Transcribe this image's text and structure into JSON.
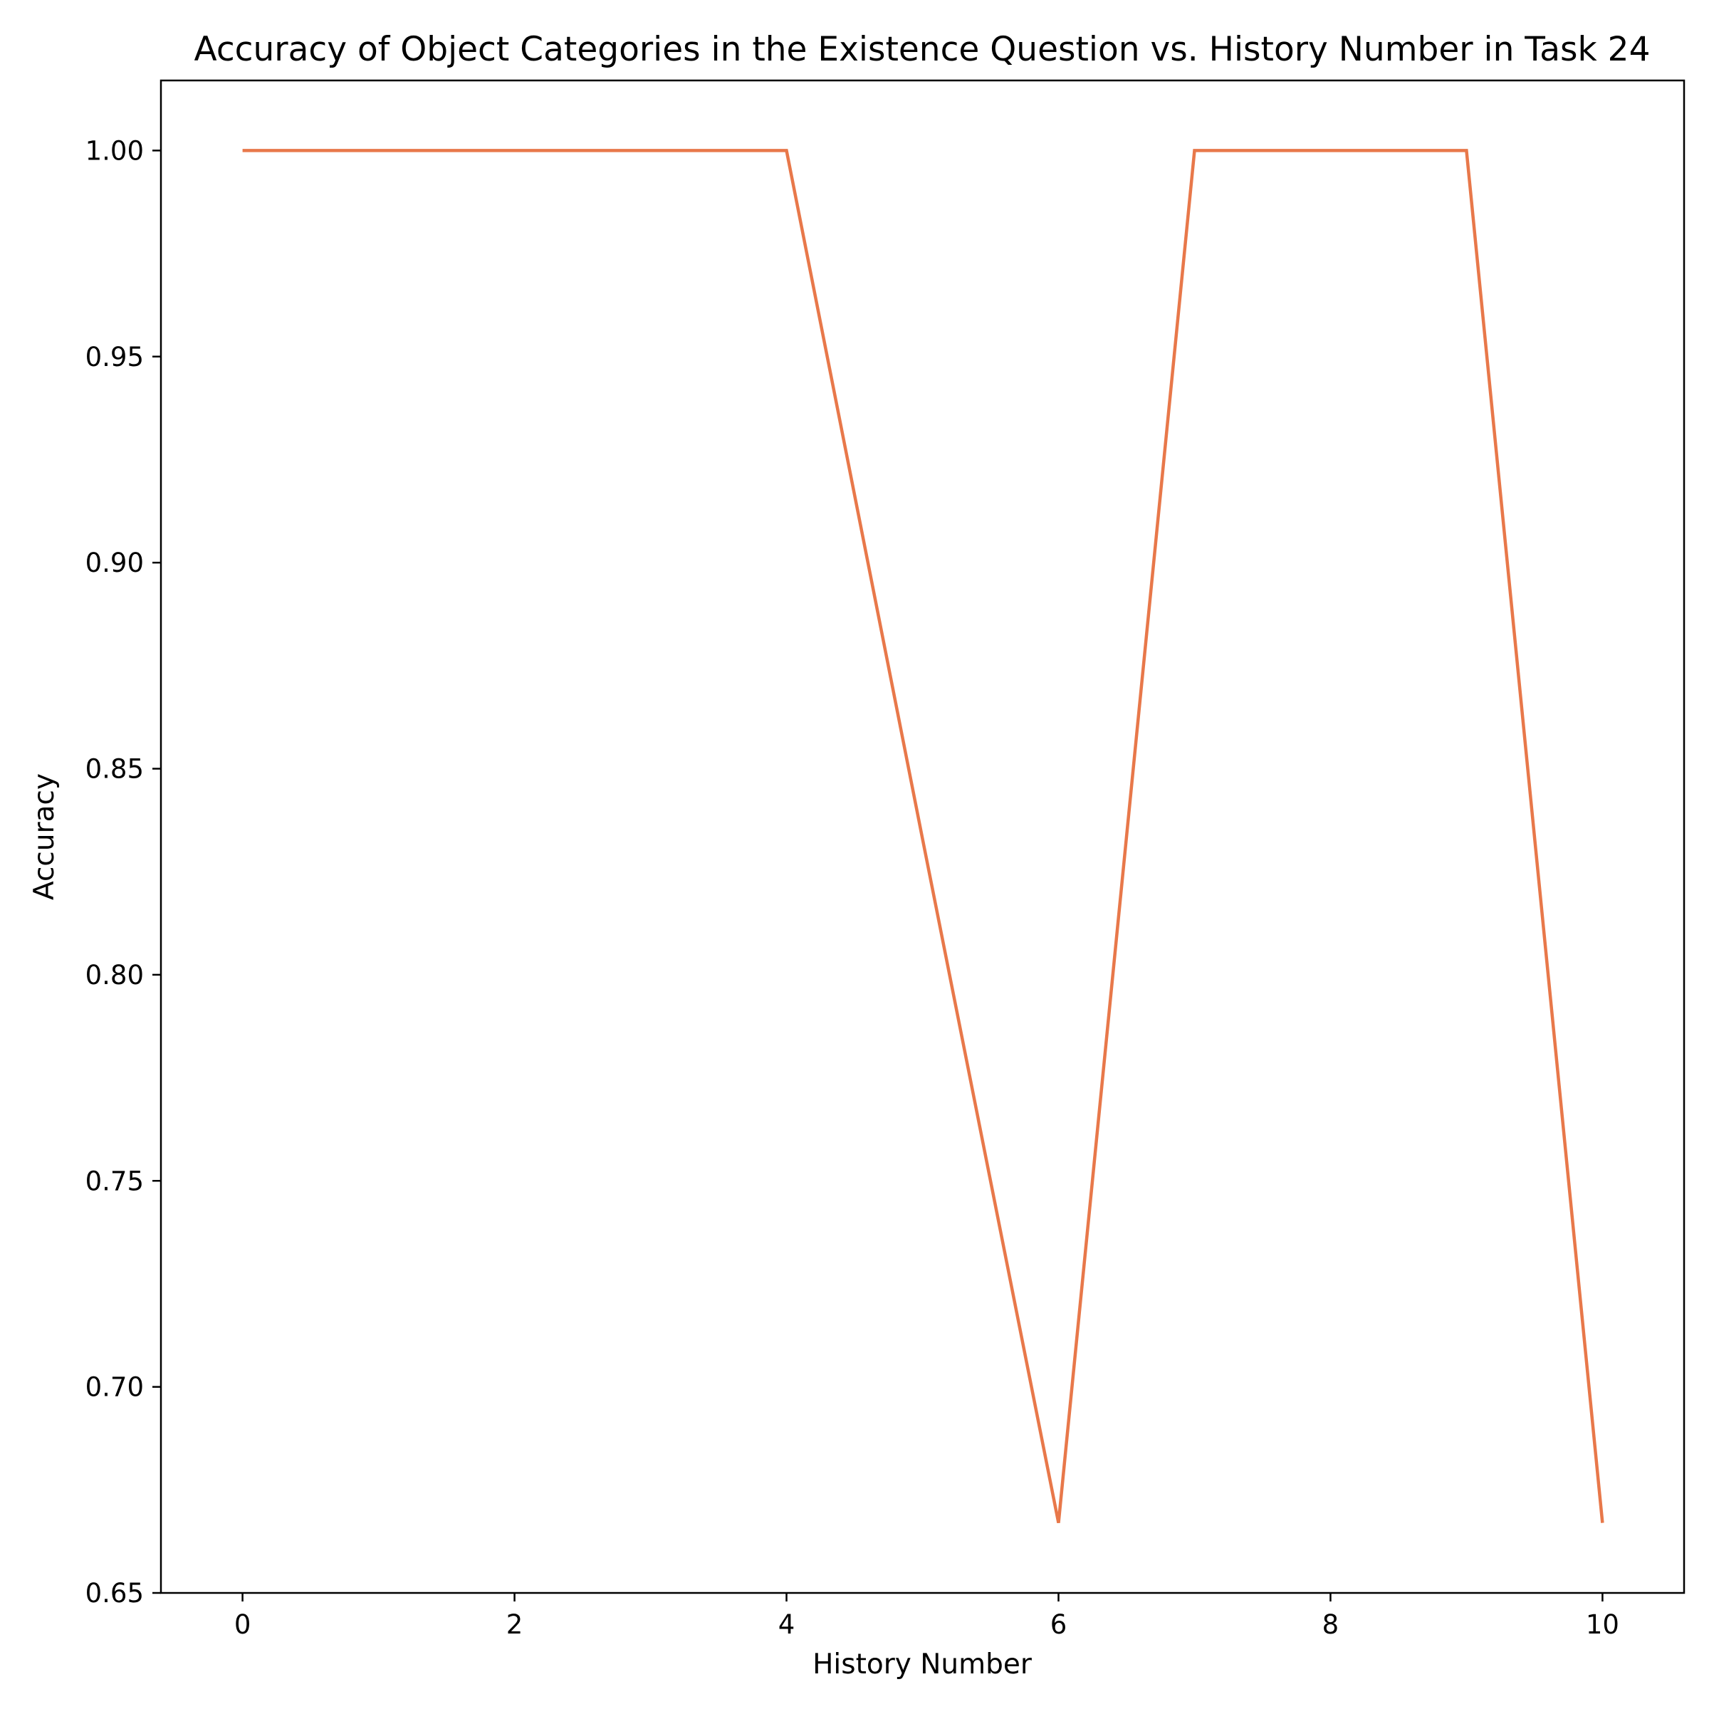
{
  "chart_data": {
    "type": "line",
    "title": "Accuracy of Object Categories in the Existence Question vs. History Number in Task 24",
    "xlabel": "History Number",
    "ylabel": "Accuracy",
    "xlim": [
      -0.6,
      10.6
    ],
    "ylim": [
      0.65,
      1.017
    ],
    "xticks": [
      0,
      2,
      4,
      6,
      8,
      10
    ],
    "xtick_labels": [
      "0",
      "2",
      "4",
      "6",
      "8",
      "10"
    ],
    "yticks": [
      0.65,
      0.7,
      0.75,
      0.8,
      0.85,
      0.9,
      0.95,
      1.0
    ],
    "ytick_labels": [
      "0.65",
      "0.70",
      "0.75",
      "0.80",
      "0.85",
      "0.90",
      "0.95",
      "1.00"
    ],
    "grid": false,
    "series": [
      {
        "color": "#e8784a",
        "x": [
          0,
          1,
          2,
          3,
          4,
          5,
          6,
          7,
          8,
          9,
          10
        ],
        "y": [
          1.0,
          1.0,
          1.0,
          1.0,
          1.0,
          0.833,
          0.667,
          1.0,
          1.0,
          1.0,
          0.667
        ]
      }
    ]
  }
}
